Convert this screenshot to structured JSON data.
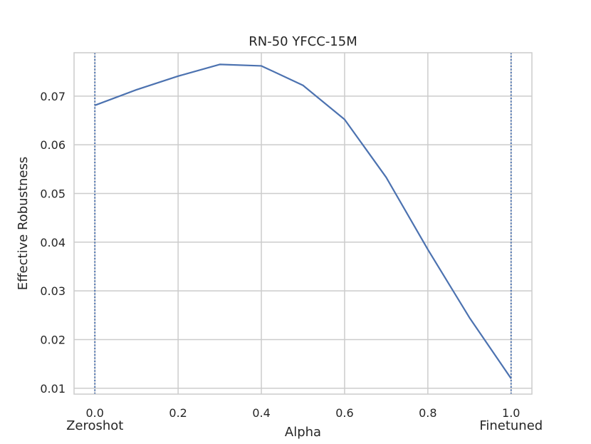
{
  "chart_data": {
    "type": "line",
    "title": "RN-50 YFCC-15M",
    "xlabel": "Alpha",
    "ylabel": "Effective Robustness",
    "xlim": [
      -0.05,
      1.05
    ],
    "ylim": [
      0.0088,
      0.0789
    ],
    "x_ticks": [
      0.0,
      0.2,
      0.4,
      0.6,
      0.8,
      1.0
    ],
    "x_tick_labels": [
      "0.0",
      "0.2",
      "0.4",
      "0.6",
      "0.8",
      "1.0"
    ],
    "y_ticks": [
      0.01,
      0.02,
      0.03,
      0.04,
      0.05,
      0.06,
      0.07
    ],
    "y_tick_labels": [
      "0.01",
      "0.02",
      "0.03",
      "0.04",
      "0.05",
      "0.06",
      "0.07"
    ],
    "grid": true,
    "series": [
      {
        "x": [
          0.0,
          0.1,
          0.2,
          0.3,
          0.4,
          0.5,
          0.6,
          0.7,
          0.8,
          0.9,
          1.0
        ],
        "values": [
          0.0681,
          0.0713,
          0.0741,
          0.0765,
          0.0762,
          0.0722,
          0.0652,
          0.0533,
          0.0385,
          0.0245,
          0.012
        ],
        "color": "#4c72b0"
      }
    ],
    "vlines": [
      {
        "x": 0.0,
        "style": "dotted",
        "color": "#4c72b0"
      },
      {
        "x": 1.0,
        "style": "dotted",
        "color": "#4c72b0"
      }
    ],
    "annotations": [
      {
        "text": "Zeroshot",
        "x": 0.0,
        "anchor": "center"
      },
      {
        "text": "Finetuned",
        "x": 1.0,
        "anchor": "center"
      }
    ],
    "colors": {
      "line": "#4c72b0",
      "grid": "#cccccc",
      "frame": "#cccccc",
      "text": "#262626"
    }
  }
}
